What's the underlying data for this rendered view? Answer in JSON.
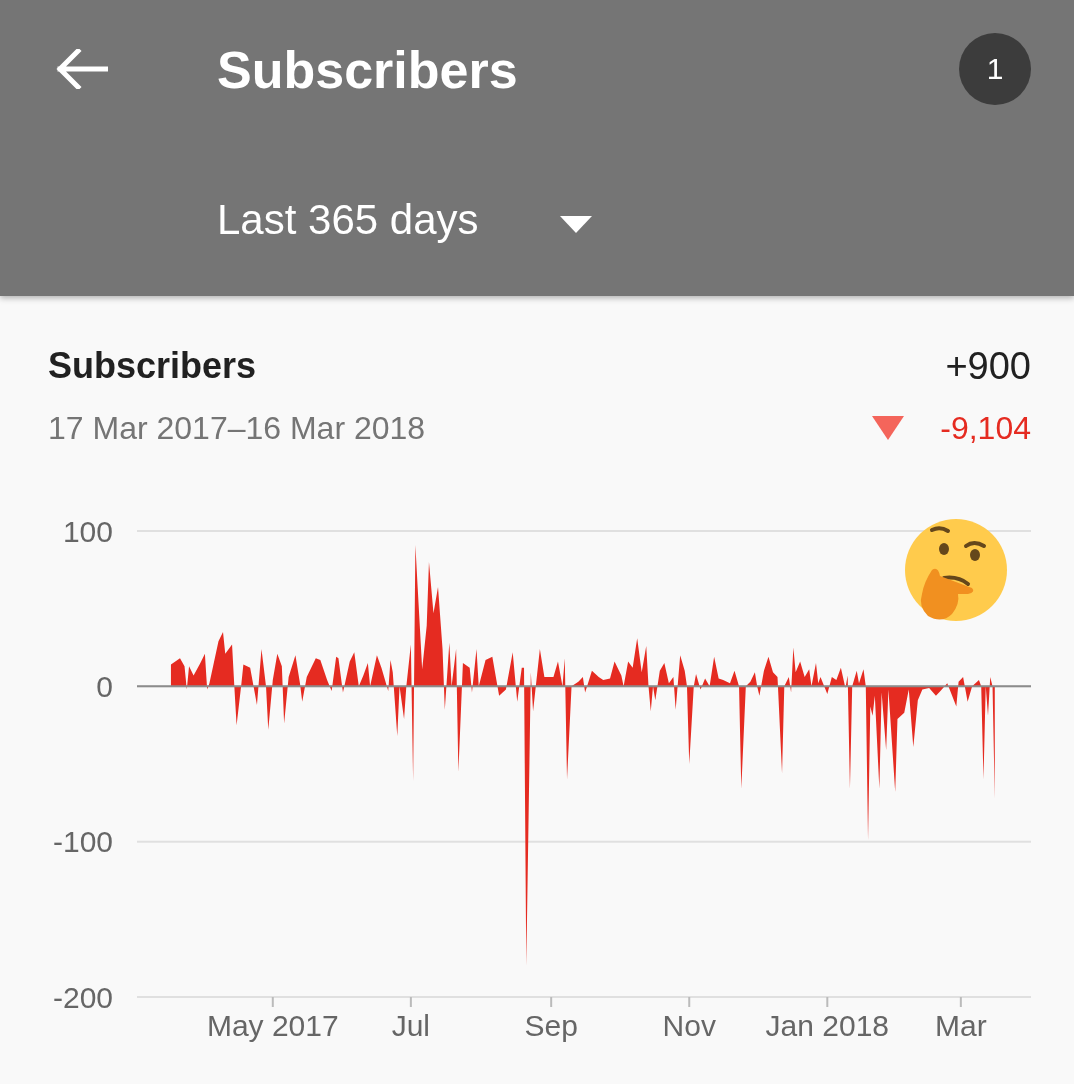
{
  "chart_data": {
    "type": "area",
    "title": "Subscribers",
    "subtitle": "17 Mar 2017–16 Mar 2018",
    "annotations": [
      "Subscribers",
      "1",
      "Last 365 days",
      "+900",
      "-9,104"
    ],
    "x": [
      "2017-03-17",
      "2017-03-21",
      "2017-03-23",
      "2017-03-24",
      "2017-03-25",
      "2017-03-27",
      "2017-03-30",
      "2017-04-01",
      "2017-04-02",
      "2017-04-03",
      "2017-04-07",
      "2017-04-09",
      "2017-04-10",
      "2017-04-13",
      "2017-04-14",
      "2017-04-15",
      "2017-04-17",
      "2017-04-18",
      "2017-04-21",
      "2017-04-24",
      "2017-04-26",
      "2017-04-28",
      "2017-04-29",
      "2017-05-01",
      "2017-05-03",
      "2017-05-05",
      "2017-05-06",
      "2017-05-08",
      "2017-05-11",
      "2017-05-13",
      "2017-05-14",
      "2017-05-16",
      "2017-05-20",
      "2017-05-22",
      "2017-05-25",
      "2017-05-27",
      "2017-05-29",
      "2017-05-30",
      "2017-06-01",
      "2017-06-04",
      "2017-06-06",
      "2017-06-08",
      "2017-06-10",
      "2017-06-12",
      "2017-06-13",
      "2017-06-16",
      "2017-06-18",
      "2017-06-21",
      "2017-06-22",
      "2017-06-23",
      "2017-06-25",
      "2017-06-26",
      "2017-06-28",
      "2017-06-29",
      "2017-07-01",
      "2017-07-02",
      "2017-07-03",
      "2017-07-04",
      "2017-07-06",
      "2017-07-08",
      "2017-07-09",
      "2017-07-11",
      "2017-07-13",
      "2017-07-15",
      "2017-07-16",
      "2017-07-18",
      "2017-07-19",
      "2017-07-21",
      "2017-07-22",
      "2017-07-24",
      "2017-07-27",
      "2017-07-28",
      "2017-07-30",
      "2017-07-31",
      "2017-08-03",
      "2017-08-06",
      "2017-08-09",
      "2017-08-12",
      "2017-08-15",
      "2017-08-17",
      "2017-08-19",
      "2017-08-20",
      "2017-08-21",
      "2017-08-23",
      "2017-08-24",
      "2017-08-27",
      "2017-08-29",
      "2017-09-02",
      "2017-09-04",
      "2017-09-06",
      "2017-09-07",
      "2017-09-08",
      "2017-09-10",
      "2017-09-13",
      "2017-09-15",
      "2017-09-16",
      "2017-09-19",
      "2017-09-22",
      "2017-09-24",
      "2017-09-27",
      "2017-09-29",
      "2017-10-02",
      "2017-10-03",
      "2017-10-05",
      "2017-10-07",
      "2017-10-09",
      "2017-10-11",
      "2017-10-13",
      "2017-10-14",
      "2017-10-15",
      "2017-10-16",
      "2017-10-17",
      "2017-10-19",
      "2017-10-21",
      "2017-10-23",
      "2017-10-25",
      "2017-10-26",
      "2017-10-28",
      "2017-10-30",
      "2017-10-31",
      "2017-11-01",
      "2017-11-03",
      "2017-11-04",
      "2017-11-06",
      "2017-11-08",
      "2017-11-10",
      "2017-11-12",
      "2017-11-14",
      "2017-11-16",
      "2017-11-19",
      "2017-11-21",
      "2017-11-23",
      "2017-11-24",
      "2017-11-26",
      "2017-11-28",
      "2017-11-30",
      "2017-12-01",
      "2017-12-02",
      "2017-12-04",
      "2017-12-06",
      "2017-12-08",
      "2017-12-10",
      "2017-12-12",
      "2017-12-13",
      "2017-12-15",
      "2017-12-16",
      "2017-12-17",
      "2017-12-18",
      "2017-12-20",
      "2017-12-22",
      "2017-12-24",
      "2017-12-25",
      "2017-12-27",
      "2017-12-28",
      "2017-12-29",
      "2018-01-01",
      "2018-01-03",
      "2018-01-05",
      "2018-01-07",
      "2018-01-09",
      "2018-01-10",
      "2018-01-11",
      "2018-01-12",
      "2018-01-14",
      "2018-01-15",
      "2018-01-17",
      "2018-01-18",
      "2018-01-19",
      "2018-01-20",
      "2018-01-21",
      "2018-01-22",
      "2018-01-24",
      "2018-01-25",
      "2018-01-27",
      "2018-01-28",
      "2018-01-31",
      "2018-02-01",
      "2018-02-04",
      "2018-02-06",
      "2018-02-08",
      "2018-02-10",
      "2018-02-12",
      "2018-02-15",
      "2018-02-18",
      "2018-02-20",
      "2018-02-23",
      "2018-02-27",
      "2018-02-28",
      "2018-03-02",
      "2018-03-04",
      "2018-03-06",
      "2018-03-09",
      "2018-03-10",
      "2018-03-11",
      "2018-03-12",
      "2018-03-13",
      "2018-03-14",
      "2018-03-15",
      "2018-03-16"
    ],
    "values": [
      14,
      18,
      13,
      -2,
      13,
      7,
      15,
      21,
      -2,
      2,
      29,
      35,
      21,
      27,
      0,
      -25,
      0,
      14,
      12,
      -12,
      24,
      0,
      -28,
      4,
      21,
      13,
      -24,
      6,
      20,
      2,
      -10,
      6,
      18,
      17,
      4,
      -3,
      19,
      18,
      -4,
      16,
      22,
      0,
      7,
      15,
      0,
      20,
      12,
      -3,
      17,
      9,
      -32,
      0,
      -21,
      0,
      27,
      -61,
      91,
      64,
      11,
      39,
      80,
      47,
      64,
      24,
      -15,
      28,
      0,
      24,
      -55,
      15,
      12,
      -4,
      24,
      0,
      17,
      19,
      -6,
      -2,
      22,
      -10,
      12,
      12,
      -180,
      9,
      -16,
      24,
      6,
      6,
      16,
      0,
      18,
      -60,
      0,
      3,
      6,
      -4,
      10,
      6,
      4,
      5,
      16,
      7,
      0,
      16,
      12,
      31,
      9,
      26,
      0,
      -16,
      0,
      -9,
      10,
      15,
      2,
      6,
      -15,
      20,
      10,
      0,
      -50,
      0,
      8,
      -2,
      5,
      0,
      19,
      5,
      4,
      2,
      10,
      0,
      -66,
      0,
      3,
      9,
      0,
      -6,
      10,
      19,
      9,
      6,
      -56,
      0,
      6,
      -4,
      25,
      9,
      16,
      6,
      11,
      0,
      15,
      2,
      6,
      -5,
      6,
      4,
      12,
      -1,
      7,
      -66,
      0,
      10,
      2,
      11,
      0,
      -99,
      -13,
      -19,
      -6,
      -66,
      -4,
      -41,
      -2,
      -68,
      -21,
      -17,
      -2,
      -39,
      -9,
      -2,
      -1,
      -6,
      -3,
      2,
      -13,
      3,
      6,
      -10,
      0,
      4,
      0,
      -60,
      0,
      -19,
      6,
      0,
      -72
    ],
    "color": "#e52b21",
    "xlim": [
      "2017-03-02",
      "2018-04-01"
    ],
    "xticks": [
      {
        "value": "2017-05-01",
        "label": "May 2017"
      },
      {
        "value": "2017-07-01",
        "label": "Jul"
      },
      {
        "value": "2017-09-01",
        "label": "Sep"
      },
      {
        "value": "2017-11-01",
        "label": "Nov"
      },
      {
        "value": "2018-01-01",
        "label": "Jan 2018"
      },
      {
        "value": "2018-03-01",
        "label": "Mar"
      }
    ],
    "ylim": [
      -200,
      100
    ],
    "yticks": [
      -200,
      -100,
      0,
      100
    ],
    "grid": "y"
  }
}
